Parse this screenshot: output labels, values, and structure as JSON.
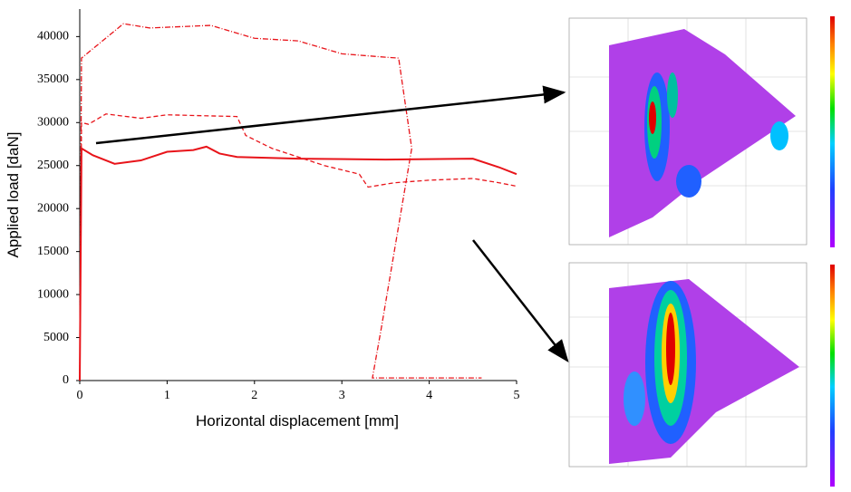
{
  "chart_data": {
    "type": "line",
    "y_label": "Applied load [daN]",
    "x_label": "Horizontal displacement [mm]",
    "xlim": [
      0,
      5
    ],
    "ylim": [
      0,
      43200
    ],
    "xticks": [
      0,
      1,
      2,
      3,
      4,
      5
    ],
    "yticks": [
      0,
      5000,
      10000,
      15000,
      20000,
      25000,
      30000,
      35000,
      40000
    ],
    "series": [
      {
        "color": "#e8141a",
        "style": "solid",
        "x": [
          0,
          0.02,
          0.15,
          0.4,
          0.7,
          1.0,
          1.3,
          1.45,
          1.6,
          1.8,
          2.5,
          3.5,
          4.5,
          4.8,
          5.0
        ],
        "values": [
          0,
          27000,
          26200,
          25200,
          25600,
          26600,
          26800,
          27200,
          26400,
          26000,
          25800,
          25700,
          25800,
          24800,
          24000
        ]
      },
      {
        "color": "#e8141a",
        "style": "dashed",
        "x": [
          0,
          0.02,
          0.1,
          0.3,
          0.7,
          1.0,
          1.8,
          1.9,
          2.2,
          2.8,
          3.2,
          3.3,
          3.6,
          4.0,
          4.5,
          4.8,
          5.0
        ],
        "values": [
          0,
          30000,
          29800,
          31000,
          30500,
          30900,
          30700,
          28500,
          27000,
          25000,
          24000,
          22500,
          23000,
          23300,
          23500,
          23000,
          22600
        ]
      },
      {
        "color": "#e8141a",
        "style": "dashdot",
        "x": [
          0,
          0.02,
          0.2,
          0.5,
          0.8,
          1.5,
          2.0,
          2.5,
          3.0,
          3.5,
          3.65,
          3.8,
          3.6,
          3.45,
          3.35,
          3.8,
          4.6
        ],
        "values": [
          0,
          37500,
          39000,
          41500,
          41000,
          41300,
          39800,
          39500,
          38000,
          37600,
          37500,
          27000,
          15000,
          6000,
          300,
          300,
          300
        ]
      }
    ]
  }
}
